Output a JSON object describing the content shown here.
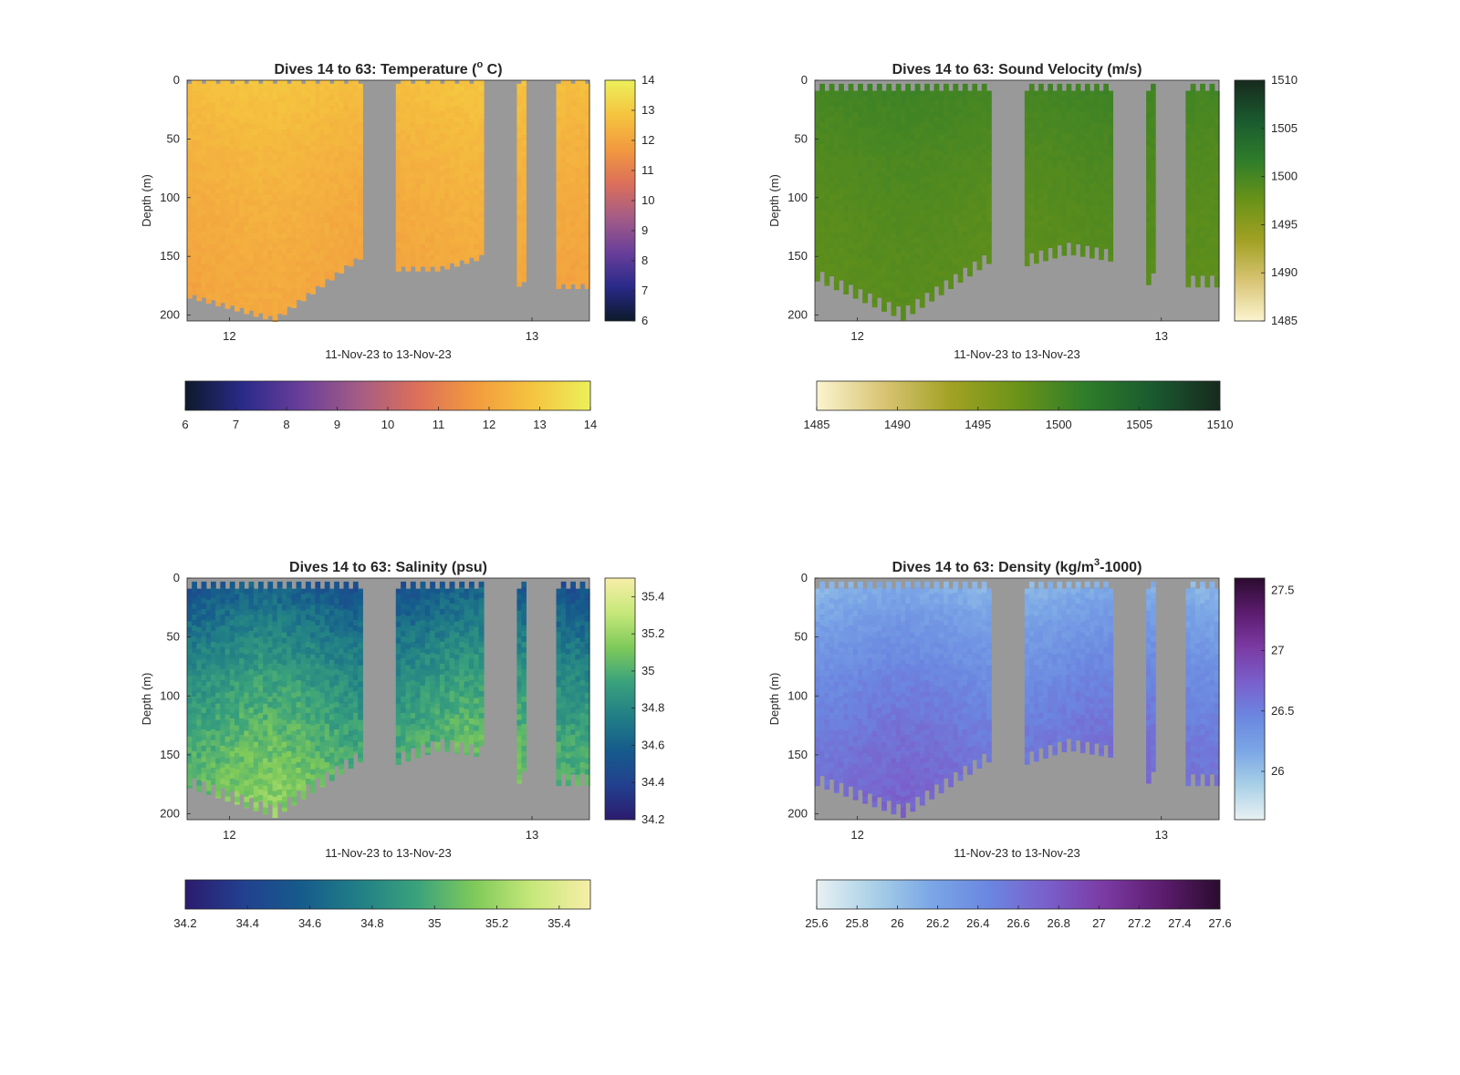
{
  "figure": {
    "grey_mask_color": "#999999"
  },
  "chart_data": [
    {
      "id": "temperature",
      "type": "heatmap",
      "title": "Dives 14 to 63: Temperature (",
      "title_sup": "o",
      "title_after": " C)",
      "ylabel": "Depth (m)",
      "xlabel": "11-Nov-23 to 13-Nov-23",
      "x_ticks": [
        "12",
        "13"
      ],
      "x_unit": "day of Nov-23",
      "xlim": [
        11.86,
        13.19
      ],
      "x_tick_values": [
        12,
        13
      ],
      "y_ticks": [
        "0",
        "50",
        "100",
        "150",
        "200"
      ],
      "ylim": [
        0,
        205
      ],
      "y_reversed": true,
      "clim": [
        6,
        14
      ],
      "colorbar_ticks": [
        "6",
        "7",
        "8",
        "9",
        "10",
        "11",
        "12",
        "13",
        "14"
      ],
      "colormap": [
        "#0c1a2a",
        "#2a2a8a",
        "#6a3f9a",
        "#a45c86",
        "#dc6f5a",
        "#f29a3f",
        "#f5c43f",
        "#ecf05a"
      ],
      "surface_gap": "none",
      "profile": {
        "surface": 12.8,
        "deep": 11.8,
        "scale": 130,
        "variation": 0.25
      },
      "data_ranges": [
        {
          "x_start": 11.86,
          "x_end": 12.44,
          "max_depth_start": 183,
          "max_depth_mid": 203,
          "max_depth_end": 150
        },
        {
          "x_start": 12.55,
          "x_end": 12.84,
          "max_depth_start": 160,
          "max_depth_mid": 160,
          "max_depth_end": 150
        },
        {
          "x_start": 12.95,
          "x_end": 12.98,
          "max_depth_start": 173,
          "max_depth_mid": 173,
          "max_depth_end": 173
        },
        {
          "x_start": 13.08,
          "x_end": 13.19,
          "max_depth_start": 175,
          "max_depth_mid": 175,
          "max_depth_end": 175
        }
      ]
    },
    {
      "id": "sound-velocity",
      "type": "heatmap",
      "title": "Dives 14 to 63: Sound Velocity (m/s)",
      "title_sup": "",
      "title_after": "",
      "ylabel": "Depth (m)",
      "xlabel": "11-Nov-23 to 13-Nov-23",
      "x_ticks": [
        "12",
        "13"
      ],
      "x_unit": "day of Nov-23",
      "xlim": [
        11.86,
        13.19
      ],
      "x_tick_values": [
        12,
        13
      ],
      "y_ticks": [
        "0",
        "50",
        "100",
        "150",
        "200"
      ],
      "ylim": [
        0,
        205
      ],
      "y_reversed": true,
      "clim": [
        1485,
        1510
      ],
      "colorbar_ticks": [
        "1485",
        "1490",
        "1495",
        "1500",
        "1505",
        "1510"
      ],
      "colormap": [
        "#fbf4cf",
        "#d8c474",
        "#a2a124",
        "#6a9318",
        "#2e7d2a",
        "#1a5a2f",
        "#172a1e"
      ],
      "surface_gap": "comb",
      "profile": {
        "surface": 1500.5,
        "deep": 1497.8,
        "scale": 130,
        "variation": 0.6
      },
      "data_ranges": [
        {
          "x_start": 11.86,
          "x_end": 12.44,
          "max_depth_start": 165,
          "max_depth_mid": 198,
          "max_depth_end": 150
        },
        {
          "x_start": 12.55,
          "x_end": 12.84,
          "max_depth_start": 152,
          "max_depth_mid": 142,
          "max_depth_end": 148
        },
        {
          "x_start": 12.95,
          "x_end": 12.98,
          "max_depth_start": 168,
          "max_depth_mid": 168,
          "max_depth_end": 168
        },
        {
          "x_start": 13.08,
          "x_end": 13.19,
          "max_depth_start": 170,
          "max_depth_mid": 170,
          "max_depth_end": 170
        }
      ]
    },
    {
      "id": "salinity",
      "type": "heatmap",
      "title": "Dives 14 to 63: Salinity (psu)",
      "title_sup": "",
      "title_after": "",
      "ylabel": "Depth (m)",
      "xlabel": "11-Nov-23 to 13-Nov-23",
      "x_ticks": [
        "12",
        "13"
      ],
      "x_unit": "day of Nov-23",
      "xlim": [
        11.86,
        13.19
      ],
      "x_tick_values": [
        12,
        13
      ],
      "y_ticks": [
        "0",
        "50",
        "100",
        "150",
        "200"
      ],
      "ylim": [
        0,
        205
      ],
      "y_reversed": true,
      "clim": [
        34.2,
        35.5
      ],
      "colorbar_ticks": [
        "34.2",
        "34.4",
        "34.6",
        "34.8",
        "35",
        "35.2",
        "35.4"
      ],
      "colormap": [
        "#2c1b6e",
        "#22408f",
        "#165b8c",
        "#217f86",
        "#3aa27c",
        "#7fca5a",
        "#c7e87a",
        "#f7eea8"
      ],
      "surface_gap": "comb",
      "profile": {
        "surface": 34.5,
        "deep": 35.3,
        "scale": 140,
        "variation": 0.15
      },
      "data_ranges": [
        {
          "x_start": 11.86,
          "x_end": 12.44,
          "max_depth_start": 172,
          "max_depth_mid": 197,
          "max_depth_end": 150
        },
        {
          "x_start": 12.55,
          "x_end": 12.84,
          "max_depth_start": 152,
          "max_depth_mid": 140,
          "max_depth_end": 146
        },
        {
          "x_start": 12.95,
          "x_end": 12.98,
          "max_depth_start": 168,
          "max_depth_mid": 168,
          "max_depth_end": 168
        },
        {
          "x_start": 13.08,
          "x_end": 13.19,
          "max_depth_start": 170,
          "max_depth_mid": 170,
          "max_depth_end": 170
        }
      ]
    },
    {
      "id": "density",
      "type": "heatmap",
      "title": "Dives 14 to 63: Density (kg/m",
      "title_sup": "3",
      "title_after": "-1000)",
      "ylabel": "Depth (m)",
      "xlabel": "11-Nov-23 to 13-Nov-23",
      "x_ticks": [
        "12",
        "13"
      ],
      "x_unit": "day of Nov-23",
      "xlim": [
        11.86,
        13.19
      ],
      "x_tick_values": [
        12,
        13
      ],
      "y_ticks": [
        "0",
        "50",
        "100",
        "150",
        "200"
      ],
      "ylim": [
        0,
        205
      ],
      "y_reversed": true,
      "clim": [
        25.6,
        27.6
      ],
      "colorbar_ticks": [
        "25.6",
        "25.8",
        "26",
        "26.2",
        "26.4",
        "26.6",
        "26.8",
        "27",
        "27.2",
        "27.4",
        "27.6"
      ],
      "colorbar_right_ticks": [
        "26",
        "26.5",
        "27",
        "27.5"
      ],
      "colormap": [
        "#e8f1f3",
        "#a9d0e7",
        "#7aa6e6",
        "#6b86e0",
        "#7a5fcb",
        "#7b3aa3",
        "#5c1c6e",
        "#2b0b2f"
      ],
      "surface_gap": "comb",
      "profile": {
        "surface": 26.05,
        "deep": 26.85,
        "scale": 130,
        "variation": 0.12
      },
      "data_ranges": [
        {
          "x_start": 11.86,
          "x_end": 12.44,
          "max_depth_start": 170,
          "max_depth_mid": 197,
          "max_depth_end": 150
        },
        {
          "x_start": 12.55,
          "x_end": 12.84,
          "max_depth_start": 152,
          "max_depth_mid": 140,
          "max_depth_end": 146
        },
        {
          "x_start": 12.95,
          "x_end": 12.98,
          "max_depth_start": 168,
          "max_depth_mid": 168,
          "max_depth_end": 168
        },
        {
          "x_start": 13.08,
          "x_end": 13.19,
          "max_depth_start": 170,
          "max_depth_mid": 170,
          "max_depth_end": 170
        }
      ]
    }
  ]
}
